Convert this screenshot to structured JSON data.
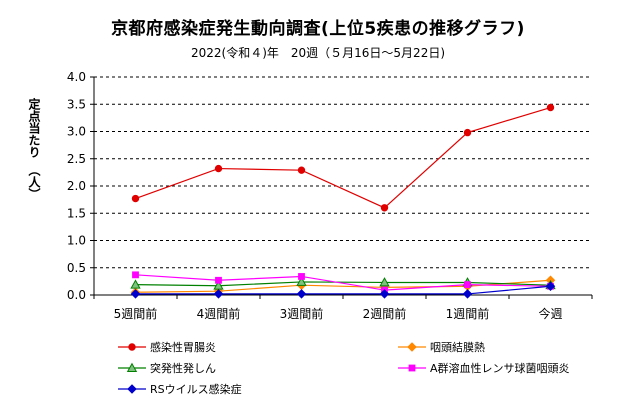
{
  "chart_data": {
    "type": "line",
    "title": "京都府感染症発生動向調査(上位5疾患の推移グラフ)",
    "subtitle": "2022(令和４)年　20週（５月16日～5月22日)",
    "ylabel": "定点当たり　（人）",
    "xlabel": "",
    "categories": [
      "5週間前",
      "4週間前",
      "3週間前",
      "2週間前",
      "1週間前",
      "今週"
    ],
    "ylim": [
      0,
      4.0
    ],
    "yticks": [
      0,
      0.5,
      1.0,
      1.5,
      2.0,
      2.5,
      3.0,
      3.5,
      4.0
    ],
    "ytick_labels": [
      "0.0",
      "0.5",
      "1.0",
      "1.5",
      "2.0",
      "2.5",
      "3.0",
      "3.5",
      "4.0"
    ],
    "grid": "horizontal dashed",
    "legend_position": "bottom",
    "series": [
      {
        "name": "感染性胃腸炎",
        "color": "#e00000",
        "marker": "circle",
        "values": [
          1.77,
          2.32,
          2.29,
          1.6,
          2.98,
          3.44
        ]
      },
      {
        "name": "咽頭結膜熱",
        "color": "#ff8800",
        "marker": "diamond",
        "values": [
          0.05,
          0.07,
          0.18,
          0.14,
          0.16,
          0.27
        ]
      },
      {
        "name": "突発性発しん",
        "color": "#008000",
        "marker": "triangle",
        "values": [
          0.19,
          0.17,
          0.24,
          0.23,
          0.23,
          0.18
        ]
      },
      {
        "name": "A群溶血性レンサ球菌咽頭炎",
        "color": "#ff00ff",
        "marker": "square",
        "values": [
          0.37,
          0.27,
          0.34,
          0.09,
          0.19,
          0.16
        ]
      },
      {
        "name": "RSウイルス感染症",
        "color": "#0000cc",
        "marker": "diamond",
        "values": [
          0.02,
          0.02,
          0.02,
          0.02,
          0.02,
          0.16
        ]
      }
    ]
  }
}
